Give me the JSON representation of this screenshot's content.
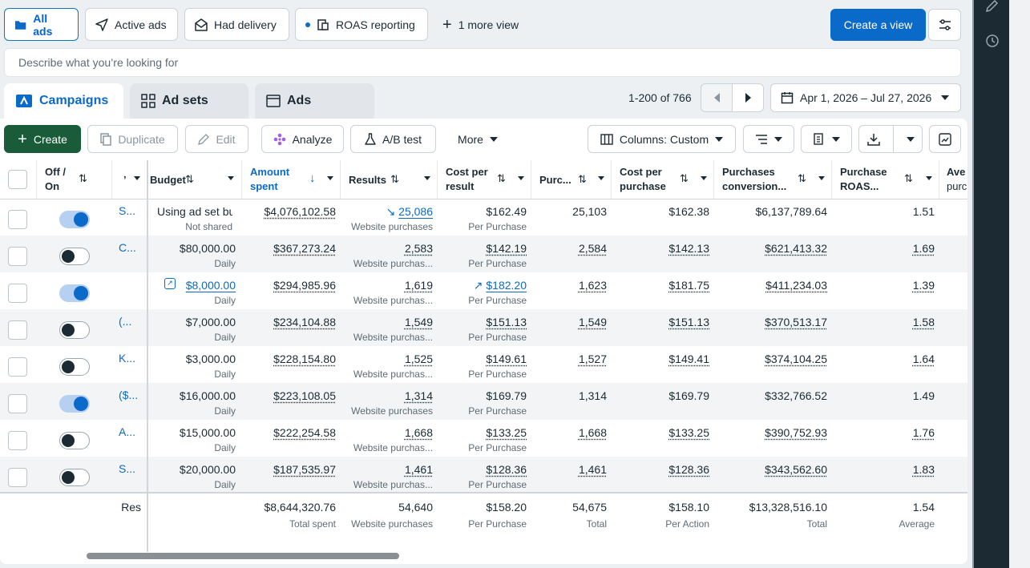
{
  "views": {
    "all_ads": "All ads",
    "active_ads": "Active ads",
    "had_delivery": "Had delivery",
    "roas_reporting": "ROAS reporting",
    "more_view": "1 more view",
    "create_view": "Create a view"
  },
  "search": {
    "placeholder": "Describe what you’re looking for"
  },
  "tabs": {
    "campaigns": "Campaigns",
    "ad_sets": "Ad sets",
    "ads": "Ads"
  },
  "pager": {
    "text": "1-200 of 766"
  },
  "date_range": "Apr 1, 2026 – Jul 27, 2026",
  "toolbar": {
    "create": "Create",
    "duplicate": "Duplicate",
    "edit": "Edit",
    "analyze": "Analyze",
    "ab_test": "A/B test",
    "more": "More",
    "columns": "Columns: Custom"
  },
  "headers": {
    "off_on_1": "Off /",
    "off_on_2": "On",
    "name_trunc": "ʼ",
    "budget": "Budget",
    "amount_1": "Amount",
    "amount_2": "spent",
    "results": "Results",
    "cpr_1": "Cost per",
    "cpr_2": "result",
    "purchases": "Purc...",
    "cpp_1": "Cost per",
    "cpp_2": "purchase",
    "pcv_1": "Purchases",
    "pcv_2": "conversion...",
    "roas_1": "Purchase",
    "roas_2": "ROAS...",
    "avg_1": "Ave",
    "avg_2": "purc"
  },
  "rows": [
    {
      "name": "S...",
      "budget": "Using ad set bu...",
      "budget_sub": "Not shared",
      "amount": "$4,076,102.58",
      "results": "25,086",
      "results_sub": "Website purchases",
      "cpr": "$162.49",
      "cpr_sub": "Per Purchase",
      "purchases": "25,103",
      "cpp": "$162.38",
      "pcv": "$6,137,789.64",
      "roas": "1.51",
      "status": "on"
    },
    {
      "name": "C...",
      "budget": "$80,000.00",
      "budget_sub": "Daily",
      "amount": "$367,273.24",
      "results": "2,583",
      "results_sub": "Website purchas...",
      "cpr": "$142.19",
      "cpr_sub": "Per Purchase",
      "purchases": "2,584",
      "cpp": "$142.13",
      "pcv": "$621,413.32",
      "roas": "1.69",
      "status": "off"
    },
    {
      "name": "",
      "budget": "$8,000.00",
      "budget_sub": "Daily",
      "amount": "$294,985.96",
      "results": "1,619",
      "results_sub": "Website purchas...",
      "cpr": "$182.20",
      "cpr_sub": "Per Purchase",
      "purchases": "1,623",
      "cpp": "$181.75",
      "pcv": "$411,234.03",
      "roas": "1.39",
      "status": "on"
    },
    {
      "name": "(...",
      "budget": "$7,000.00",
      "budget_sub": "Daily",
      "amount": "$234,104.88",
      "results": "1,549",
      "results_sub": "Website purchas...",
      "cpr": "$151.13",
      "cpr_sub": "Per Purchase",
      "purchases": "1,549",
      "cpp": "$151.13",
      "pcv": "$370,513.17",
      "roas": "1.58",
      "status": "off"
    },
    {
      "name": "K...",
      "budget": "$3,000.00",
      "budget_sub": "Daily",
      "amount": "$228,154.80",
      "results": "1,525",
      "results_sub": "Website purchas...",
      "cpr": "$149.61",
      "cpr_sub": "Per Purchase",
      "purchases": "1,527",
      "cpp": "$149.41",
      "pcv": "$374,104.25",
      "roas": "1.64",
      "status": "off"
    },
    {
      "name": "($...",
      "budget": "$16,000.00",
      "budget_sub": "Daily",
      "amount": "$223,108.05",
      "results": "1,314",
      "results_sub": "Website purchases",
      "cpr": "$169.79",
      "cpr_sub": "Per Purchase",
      "purchases": "1,314",
      "cpp": "$169.79",
      "pcv": "$332,766.52",
      "roas": "1.49",
      "status": "on"
    },
    {
      "name": "A...",
      "budget": "$15,000.00",
      "budget_sub": "Daily",
      "amount": "$222,254.58",
      "results": "1,668",
      "results_sub": "Website purchas...",
      "cpr": "$133.25",
      "cpr_sub": "Per Purchase",
      "purchases": "1,668",
      "cpp": "$133.25",
      "pcv": "$390,752.93",
      "roas": "1.76",
      "status": "off"
    },
    {
      "name": "S...",
      "budget": "$20,000.00",
      "budget_sub": "Daily",
      "amount": "$187,535.97",
      "results": "1,461",
      "results_sub": "Website purchas...",
      "cpr": "$128.36",
      "cpr_sub": "Per Purchase",
      "purchases": "1,461",
      "cpp": "$128.36",
      "pcv": "$343,562.60",
      "roas": "1.83",
      "status": "off"
    }
  ],
  "totals": {
    "label": "Res",
    "amount": "$8,644,320.76",
    "amount_sub": "Total spent",
    "results": "54,640",
    "results_sub": "Website purchases",
    "cpr": "$158.20",
    "cpr_sub": "Per Purchase",
    "purchases": "54,675",
    "purchases_sub": "Total",
    "cpp": "$158.10",
    "cpp_sub": "Per Action",
    "pcv": "$13,328,516.10",
    "pcv_sub": "Total",
    "roas": "1.54",
    "roas_sub": "Average"
  },
  "colors": {
    "accent": "#0a6ac9",
    "create_green": "#1a5c3a",
    "sidebar": "#1c2b33"
  }
}
